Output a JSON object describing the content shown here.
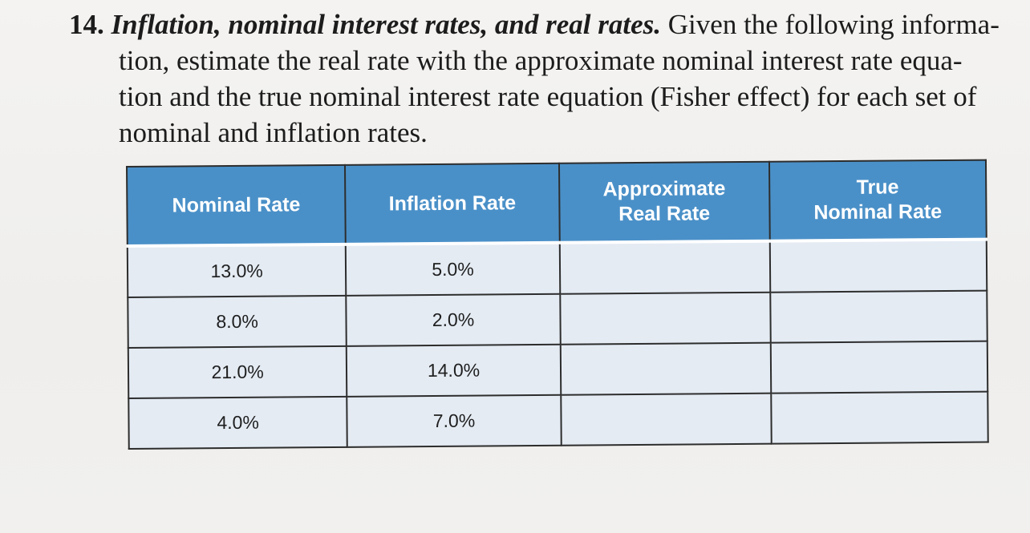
{
  "problem": {
    "number": "14.",
    "heading": "Inflation, nominal interest rates, and real rates.",
    "lines": [
      "Given the following informa-",
      "tion, estimate the real rate with the approximate nominal interest rate equa-",
      "tion and the true nominal interest rate equation (Fisher effect) for each set of",
      "nominal and inflation rates."
    ]
  },
  "table": {
    "headers": {
      "nominal": "Nominal Rate",
      "inflation": "Inflation Rate",
      "approx_line1": "Approximate",
      "approx_line2": "Real Rate",
      "true_line1": "True",
      "true_line2": "Nominal Rate"
    },
    "rows": [
      {
        "nominal": "13.0%",
        "inflation": "5.0%",
        "approx": "",
        "true": ""
      },
      {
        "nominal": "8.0%",
        "inflation": "2.0%",
        "approx": "",
        "true": ""
      },
      {
        "nominal": "21.0%",
        "inflation": "14.0%",
        "approx": "",
        "true": ""
      },
      {
        "nominal": "4.0%",
        "inflation": "7.0%",
        "approx": "",
        "true": ""
      }
    ],
    "colors": {
      "header_bg": "#4a90c8",
      "cell_bg": "#e4ebf3"
    }
  }
}
